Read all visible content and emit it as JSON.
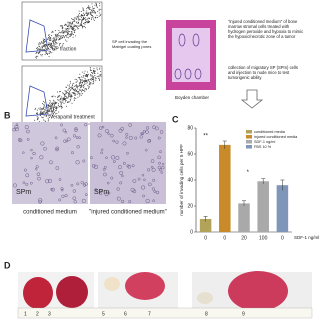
{
  "panel_a": {
    "label_top": "SP fraction",
    "label_bottom": "Verapamil treatment",
    "middle_text": "SP cell invading the Matrigel coating pores",
    "medium_text": "\"injured conditioned medium\" of bone marrow stromal cells treated with hydrogen peroxide and hypoxia to mimic the hypoxic/necrotic zone of a tumor",
    "collection_text": "collection of migratory SP (SPm) cells and injection to nude mice to test tumorigenic ability",
    "chamber_label": "Boyden chamber"
  },
  "panel_b": {
    "label": "B",
    "image_tag_left": "SPm",
    "image_tag_right": "SPm",
    "caption_left": "conditioned medium",
    "caption_right": "\"injured conditioned medium\""
  },
  "chart_data": {
    "type": "bar",
    "panel_label": "C",
    "ylabel": "number of invading cells per 5 HPF",
    "xlabel": "SDF-1 ng/ml",
    "categories": [
      "0",
      "0",
      "20",
      "100",
      "0"
    ],
    "series": [
      {
        "name": "conditioned media",
        "color": "#b3a35a",
        "values": [
          10,
          null,
          null,
          null,
          null
        ],
        "errors": [
          2,
          null,
          null,
          null,
          null
        ]
      },
      {
        "name": "injured conditioned media",
        "color": "#c98a2a",
        "values": [
          null,
          67,
          null,
          null,
          null
        ],
        "errors": [
          null,
          3,
          null,
          null,
          null
        ]
      },
      {
        "name": "SDF-1 ng/ml",
        "color": "#a9a9a9",
        "values": [
          null,
          null,
          22,
          39,
          null
        ],
        "errors": [
          null,
          null,
          2,
          2,
          null
        ]
      },
      {
        "name": "FBS 10 %",
        "color": "#7f96b8",
        "values": [
          null,
          null,
          null,
          null,
          36
        ],
        "errors": [
          null,
          null,
          null,
          null,
          4
        ]
      }
    ],
    "ylim": [
      0,
      80
    ],
    "yticks": [
      0,
      20,
      40,
      60,
      80
    ],
    "annotations": [
      "**",
      "*"
    ]
  },
  "panel_d": {
    "label": "D",
    "ruler_labels": [
      "1",
      "2",
      "3",
      "5",
      "6",
      "7",
      "8",
      "9"
    ]
  }
}
